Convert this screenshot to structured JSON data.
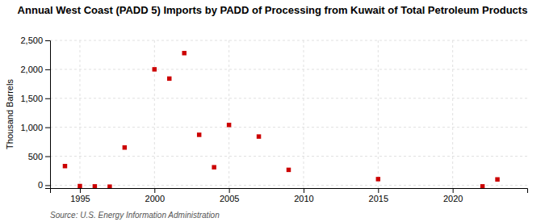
{
  "chart_data": {
    "type": "scatter",
    "title": "Annual West Coast (PADD 5) Imports by PADD of Processing from Kuwait of Total Petroleum Products",
    "ylabel": "Thousand Barrels",
    "source": "Source: U.S. Energy Information Administration",
    "x": [
      1994,
      1995,
      1996,
      1997,
      1998,
      2000,
      2001,
      2002,
      2003,
      2004,
      2005,
      2007,
      2009,
      2015,
      2022,
      2023
    ],
    "values": [
      330,
      -15,
      -20,
      -25,
      650,
      2000,
      1840,
      2280,
      870,
      310,
      1040,
      840,
      265,
      105,
      -20,
      100
    ],
    "color": "#cc0000",
    "marker": "square",
    "xlim": [
      1993,
      2025
    ],
    "xticks": [
      1995,
      2000,
      2005,
      2010,
      2015,
      2020
    ],
    "ylim": [
      -50,
      2500
    ],
    "yticks": [
      0,
      500,
      {
        "value": 1000,
        "label": "1,000"
      },
      {
        "value": 1500,
        "label": "1,500"
      },
      {
        "value": 2000,
        "label": "2,000"
      },
      {
        "value": 2500,
        "label": "2,500"
      }
    ],
    "grid": true
  }
}
